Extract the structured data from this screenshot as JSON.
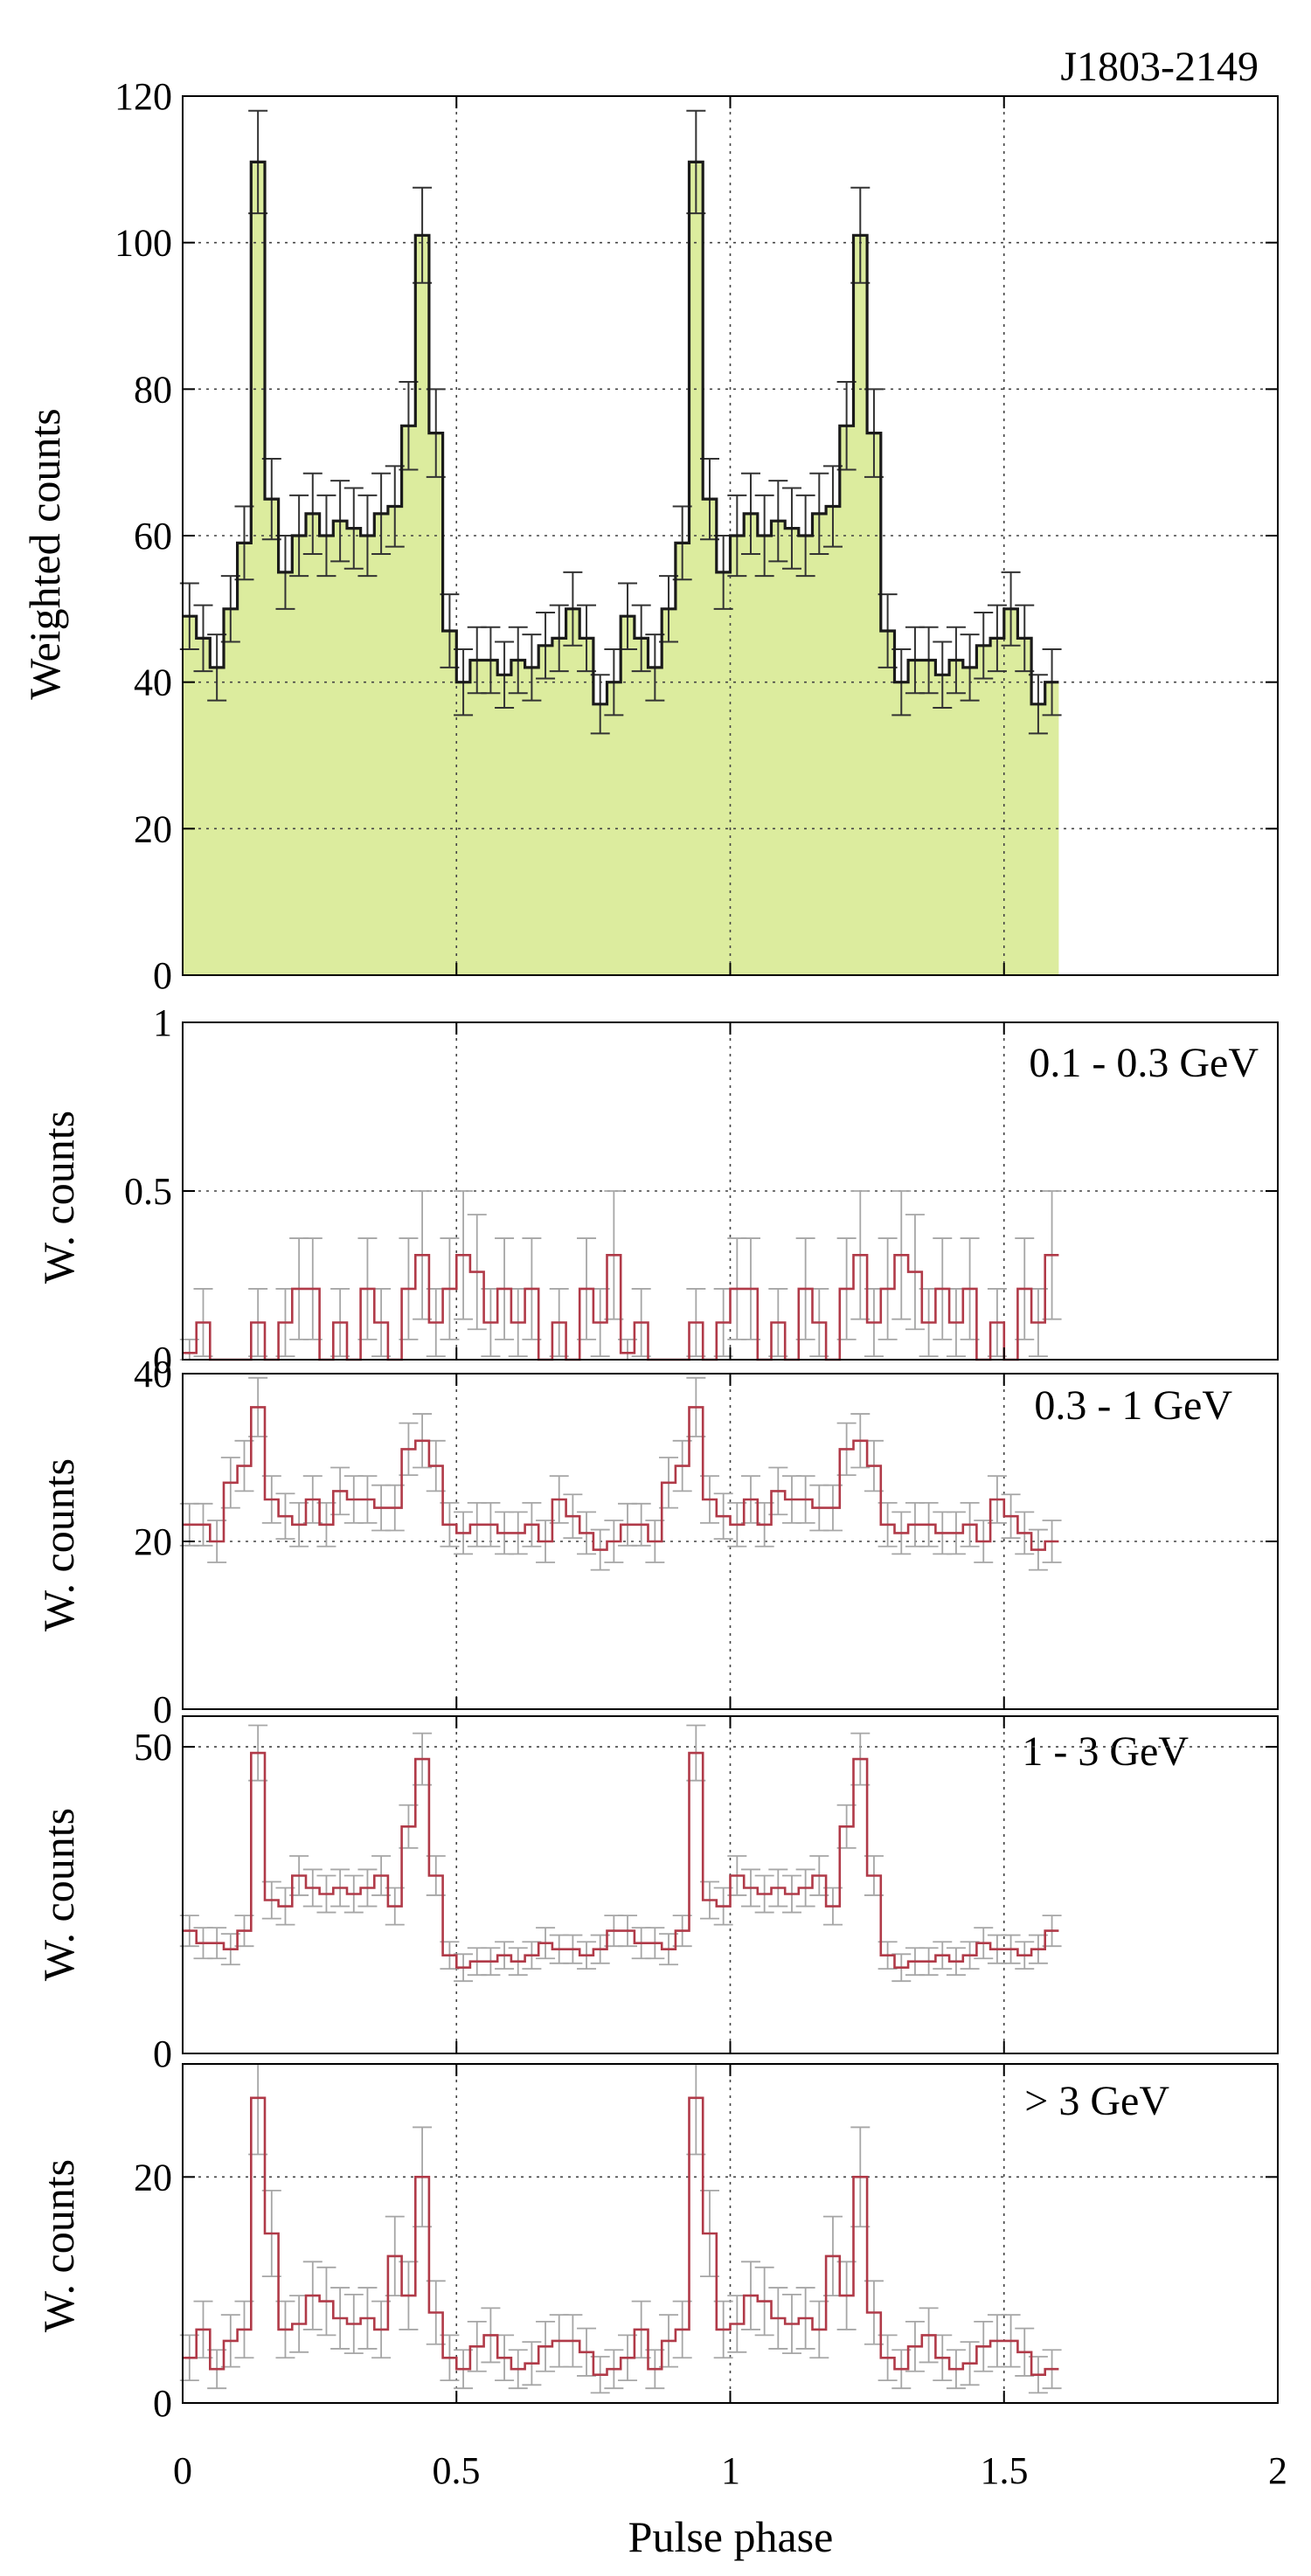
{
  "figure": {
    "x_label": "Pulse phase",
    "x_ticks": [
      "0",
      "0.5",
      "1",
      "1.5",
      "2"
    ],
    "x_tick_values": [
      0,
      0.5,
      1,
      1.5,
      2
    ],
    "xlim": [
      0,
      2
    ],
    "colors": {
      "fill": "#dcec9e",
      "total_line": "#1a1a1a",
      "band_line": "#b03a48",
      "band_error": "#a6a6a6",
      "total_error": "#333333"
    }
  },
  "chart_data": [
    {
      "type": "histogram",
      "title": "J1803-2149",
      "ylabel": "Weighted counts",
      "xlabel": "",
      "ylim": [
        0,
        120
      ],
      "yticks": [
        0,
        20,
        40,
        60,
        80,
        100,
        120
      ],
      "ytick_labels": [
        "0",
        "20",
        "40",
        "60",
        "80",
        "100",
        "120"
      ],
      "bin_width": 0.025,
      "values": [
        49,
        46,
        42,
        50,
        59,
        111,
        65,
        55,
        60,
        63,
        60,
        62,
        61,
        60,
        63,
        64,
        75,
        101,
        74,
        47,
        40,
        43,
        43,
        41,
        43,
        42,
        45,
        46,
        50,
        46,
        37,
        40
      ],
      "errors": [
        4.5,
        4.5,
        4.5,
        4.5,
        5,
        7,
        5.5,
        5,
        5.5,
        5.5,
        5.5,
        5.5,
        5.5,
        5.5,
        5.5,
        5.5,
        6,
        6.5,
        6,
        5,
        4.5,
        4.5,
        4.5,
        4.5,
        4.5,
        4.5,
        4.5,
        4.5,
        5,
        4.5,
        4,
        4.5
      ]
    },
    {
      "type": "histogram",
      "title": "0.1 - 0.3 GeV",
      "ylabel": "W. counts",
      "ylim": [
        0,
        1
      ],
      "yticks": [
        0,
        0.5,
        1
      ],
      "ytick_labels": [
        "0",
        "0.5",
        "1"
      ],
      "bin_width": 0.025,
      "values": [
        0.02,
        0.11,
        0.0,
        0.0,
        0.0,
        0.11,
        0.0,
        0.11,
        0.21,
        0.21,
        0.0,
        0.11,
        0.0,
        0.21,
        0.11,
        0.0,
        0.21,
        0.31,
        0.11,
        0.21,
        0.31,
        0.26,
        0.11,
        0.21,
        0.11,
        0.21,
        0.0,
        0.11,
        0.0,
        0.21,
        0.11,
        0.31
      ],
      "errors": [
        0.04,
        0.1,
        0.0,
        0.0,
        0.0,
        0.1,
        0.0,
        0.1,
        0.15,
        0.15,
        0.0,
        0.1,
        0.0,
        0.15,
        0.1,
        0.0,
        0.15,
        0.19,
        0.1,
        0.15,
        0.19,
        0.17,
        0.1,
        0.15,
        0.1,
        0.15,
        0.0,
        0.1,
        0.0,
        0.15,
        0.1,
        0.19
      ]
    },
    {
      "type": "histogram",
      "title": "0.3 - 1 GeV",
      "ylabel": "W. counts",
      "ylim": [
        0,
        40
      ],
      "yticks": [
        0,
        20,
        40
      ],
      "ytick_labels": [
        "0",
        "20",
        "40"
      ],
      "bin_width": 0.025,
      "values": [
        22,
        22,
        20,
        27,
        29,
        36,
        25,
        23,
        22,
        25,
        22,
        26,
        25,
        25,
        24,
        24,
        31,
        32,
        29,
        22,
        21,
        22,
        22,
        21,
        21,
        22,
        20,
        25,
        23,
        21,
        19,
        20
      ],
      "errors": [
        2.5,
        2.5,
        2.5,
        3,
        3,
        3.5,
        2.8,
        2.7,
        2.6,
        2.8,
        2.6,
        2.8,
        2.8,
        2.8,
        2.7,
        2.7,
        3.1,
        3.2,
        3,
        2.6,
        2.5,
        2.6,
        2.6,
        2.5,
        2.5,
        2.6,
        2.5,
        2.8,
        2.6,
        2.5,
        2.4,
        2.5
      ]
    },
    {
      "type": "histogram",
      "title": "1 - 3 GeV",
      "ylabel": "W. counts",
      "ylim": [
        0,
        55
      ],
      "yticks": [
        0,
        50
      ],
      "ytick_labels": [
        "0",
        "50"
      ],
      "bin_width": 0.025,
      "values": [
        20,
        18,
        18,
        17,
        20,
        49,
        25,
        24,
        29,
        27,
        26,
        27,
        26,
        27,
        29,
        24,
        37,
        48,
        29,
        16,
        14,
        15,
        15,
        16,
        15,
        16,
        18,
        17,
        17,
        16,
        17,
        20
      ],
      "errors": [
        2.5,
        2.5,
        2.5,
        2.5,
        2.5,
        4.5,
        3,
        3,
        3.2,
        3,
        3,
        3,
        3,
        3,
        3.2,
        3,
        3.5,
        4.2,
        3.2,
        2.2,
        2.2,
        2.2,
        2.2,
        2.2,
        2.2,
        2.2,
        2.5,
        2.3,
        2.3,
        2.2,
        2.3,
        2.5
      ]
    },
    {
      "type": "histogram",
      "title": "> 3 GeV",
      "ylabel": "W. counts",
      "ylim": [
        0,
        30
      ],
      "yticks": [
        0,
        20
      ],
      "ytick_labels": [
        "0",
        "20"
      ],
      "bin_width": 0.025,
      "values": [
        4,
        6.5,
        3,
        5.5,
        6.5,
        27,
        15,
        6.5,
        7,
        9.5,
        9,
        7.5,
        7,
        7.5,
        6.5,
        13,
        9.5,
        20,
        8,
        4,
        3,
        5,
        6,
        4,
        3,
        3.5,
        5,
        5.5,
        5.5,
        4.5,
        2.5,
        3
      ],
      "errors": [
        2,
        2.5,
        1.7,
        2.3,
        2.5,
        5,
        3.8,
        2.5,
        2.5,
        3,
        3,
        2.7,
        2.6,
        2.7,
        2.5,
        3.5,
        3,
        4.4,
        2.8,
        2,
        1.7,
        2.2,
        2.4,
        2,
        1.7,
        1.9,
        2.2,
        2.3,
        2.3,
        2.1,
        1.6,
        1.7
      ]
    }
  ]
}
